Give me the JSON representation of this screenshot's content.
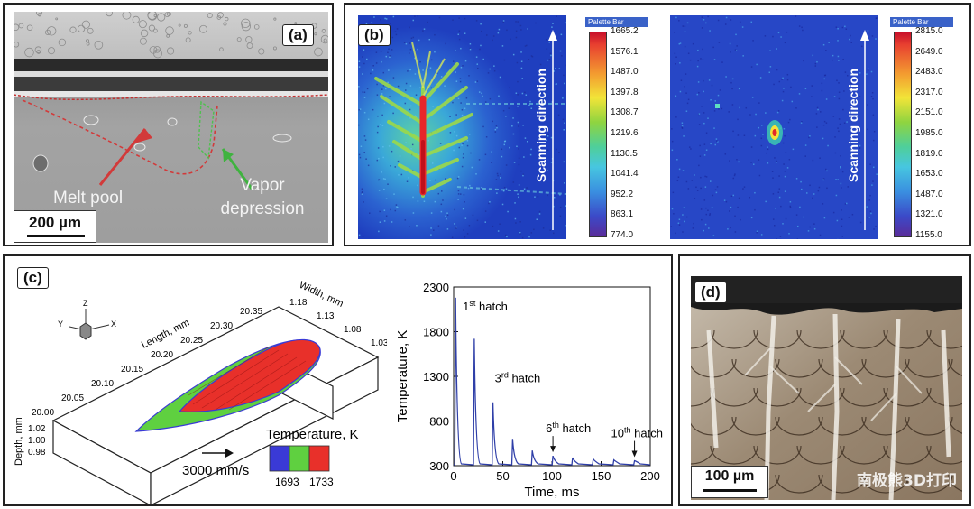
{
  "panel_a": {
    "label": "(a)",
    "melt_pool": "Melt pool",
    "vapor_line1": "Vapor",
    "vapor_line2": "depression",
    "scale": "200 µm"
  },
  "panel_b": {
    "label": "(b)",
    "left_palette": {
      "title": "Palette Bar",
      "ticks": [
        "1665.2",
        "1576.1",
        "1487.0",
        "1397.8",
        "1308.7",
        "1219.6",
        "1130.5",
        "1041.4",
        "952.2",
        "863.1",
        "774.0"
      ]
    },
    "right_palette": {
      "title": "Palette Bar",
      "ticks": [
        "2815.0",
        "2649.0",
        "2483.0",
        "2317.0",
        "2151.0",
        "1985.0",
        "1819.0",
        "1653.0",
        "1487.0",
        "1321.0",
        "1155.0"
      ]
    },
    "scan_dir": "Scanning direction"
  },
  "panel_c": {
    "label": "(c)",
    "axes3d": {
      "z": "Z",
      "y": "Y",
      "x": "X",
      "length_label": "Length, mm",
      "width_label": "Width, mm",
      "depth_label": "Depth, mm",
      "length_ticks": [
        "20.00",
        "20.05",
        "20.10",
        "20.15",
        "20.20",
        "20.25",
        "20.30",
        "20.35"
      ],
      "width_ticks": [
        "1.18",
        "1.13",
        "1.08",
        "1.03"
      ],
      "depth_ticks": [
        "1.02",
        "1.00",
        "0.98"
      ],
      "speed": "3000 mm/s",
      "temp_title": "Temperature, K",
      "temp_low": "1693",
      "temp_high": "1733",
      "temp_colors": [
        "#3a3ad6",
        "#5fd040",
        "#e8302a"
      ]
    }
  },
  "chart_data": {
    "type": "line",
    "xlabel": "Time, ms",
    "ylabel": "Temperature, K",
    "xlim": [
      0,
      200
    ],
    "ylim": [
      300,
      2300
    ],
    "xticks": [
      0,
      50,
      100,
      150,
      200
    ],
    "yticks": [
      300,
      800,
      1300,
      1800,
      2300
    ],
    "grid": false,
    "color": "#2f3fa8",
    "peaks": [
      {
        "x": 2,
        "y": 2180
      },
      {
        "x": 21,
        "y": 1720
      },
      {
        "x": 40,
        "y": 1010
      },
      {
        "x": 60,
        "y": 600
      },
      {
        "x": 80,
        "y": 470
      },
      {
        "x": 101,
        "y": 410
      },
      {
        "x": 121,
        "y": 390
      },
      {
        "x": 142,
        "y": 375
      },
      {
        "x": 163,
        "y": 365
      },
      {
        "x": 184,
        "y": 355
      }
    ],
    "baseline": 310,
    "annotations": [
      {
        "pre": "1",
        "sup": "st",
        "post": " hatch",
        "x": 2,
        "y": 2180
      },
      {
        "pre": "3",
        "sup": "rd",
        "post": " hatch",
        "x": 40,
        "y": 1010
      },
      {
        "pre": "6",
        "sup": "th",
        "post": " hatch",
        "x": 101,
        "y": 410
      },
      {
        "pre": "10",
        "sup": "th",
        "post": " hatch",
        "x": 184,
        "y": 355
      }
    ]
  },
  "panel_d": {
    "label": "(d)",
    "scale": "100 µm",
    "watermark": "南极熊3D打印"
  }
}
